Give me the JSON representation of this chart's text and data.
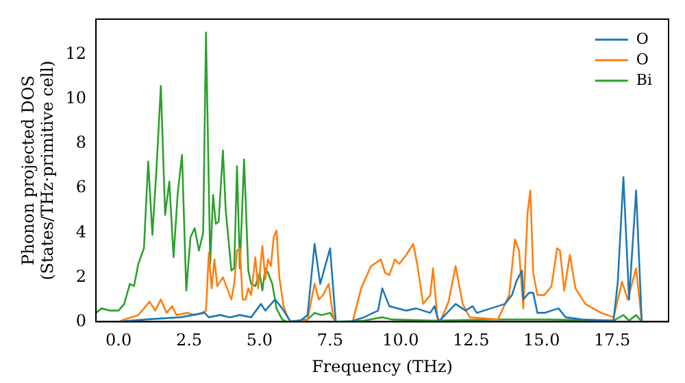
{
  "chart_data": {
    "type": "line",
    "xlabel": "Frequency (THz)",
    "ylabel": "Phonon projected DOS\n(States/THz·primitive cell)",
    "xlim": [
      -0.8,
      19.5
    ],
    "ylim": [
      0,
      13.6
    ],
    "xticks": [
      {
        "value": 0,
        "label": "0.0"
      },
      {
        "value": 2.5,
        "label": "2.5"
      },
      {
        "value": 5,
        "label": "5.0"
      },
      {
        "value": 7.5,
        "label": "7.5"
      },
      {
        "value": 10,
        "label": "10.0"
      },
      {
        "value": 12.5,
        "label": "12.5"
      },
      {
        "value": 15,
        "label": "15.0"
      },
      {
        "value": 17.5,
        "label": "17.5"
      }
    ],
    "yticks": [
      0,
      2,
      4,
      6,
      8,
      10,
      12
    ],
    "grid": false,
    "legend": "top right",
    "marker": "none",
    "line_style": "solid",
    "series": [
      {
        "name": "O",
        "color": "#1f77b4",
        "x": [
          0,
          0.95,
          2.2,
          3.05,
          3.2,
          3.6,
          3.95,
          4.3,
          4.7,
          5.05,
          5.2,
          5.55,
          5.8,
          6.1,
          6.45,
          6.7,
          6.95,
          7.15,
          7.5,
          7.7,
          8.2,
          8.7,
          9.2,
          9.35,
          9.6,
          10.2,
          10.55,
          11.05,
          11.2,
          11.35,
          11.95,
          12.3,
          12.55,
          12.7,
          13.2,
          13.7,
          13.95,
          14.1,
          14.3,
          14.35,
          14.55,
          14.7,
          14.85,
          15.1,
          15.6,
          15.85,
          16.45,
          17.55,
          17.7,
          17.9,
          18.1,
          18.35,
          18.55
        ],
        "values": [
          0,
          0.1,
          0.2,
          0.4,
          0.2,
          0.3,
          0.2,
          0.3,
          0.2,
          0.8,
          0.5,
          1.0,
          0.6,
          0,
          0.05,
          0.3,
          3.5,
          1.7,
          3.3,
          0,
          0,
          0.2,
          0.5,
          1.5,
          0.7,
          0.5,
          0.6,
          0.4,
          0.7,
          0,
          0.8,
          0.5,
          0.7,
          0.4,
          0.6,
          0.8,
          1.2,
          1.8,
          2.3,
          1.0,
          1.3,
          1.3,
          0.4,
          0.4,
          0.6,
          0.2,
          0.1,
          0.05,
          1.8,
          6.5,
          1.0,
          5.9,
          0
        ]
      },
      {
        "name": "O",
        "color": "#ff7f0e",
        "x": [
          0,
          0.2,
          0.7,
          1.1,
          1.3,
          1.5,
          1.7,
          1.9,
          2.05,
          2.45,
          2.7,
          2.95,
          3.1,
          3.2,
          3.3,
          3.4,
          3.5,
          3.7,
          3.85,
          4.0,
          4.1,
          4.2,
          4.3,
          4.4,
          4.5,
          4.6,
          4.7,
          4.85,
          4.95,
          5.1,
          5.2,
          5.3,
          5.4,
          5.5,
          5.6,
          5.7,
          5.85,
          6.0,
          6.1,
          6.45,
          6.7,
          6.95,
          7.1,
          7.25,
          7.45,
          7.6,
          7.7,
          8.3,
          8.6,
          8.95,
          9.3,
          9.45,
          9.6,
          9.8,
          9.95,
          10.2,
          10.45,
          10.6,
          10.8,
          11.05,
          11.15,
          11.3,
          11.4,
          11.7,
          11.95,
          12.2,
          12.45,
          13.45,
          13.85,
          14.05,
          14.2,
          14.35,
          14.5,
          14.6,
          14.7,
          14.85,
          15.1,
          15.35,
          15.55,
          15.65,
          15.8,
          16.0,
          16.2,
          16.55,
          17.1,
          17.55,
          17.85,
          18.05,
          18.35,
          18.55
        ],
        "values": [
          0,
          0.1,
          0.3,
          0.9,
          0.5,
          1.0,
          0.4,
          0.7,
          0.3,
          0.4,
          0.3,
          0.4,
          0.5,
          3.1,
          1.5,
          2.8,
          1.6,
          2.0,
          1.5,
          1.0,
          1.7,
          3.2,
          3.3,
          1.0,
          1.0,
          1.5,
          1.2,
          2.9,
          1.5,
          3.4,
          1.9,
          2.8,
          2.5,
          3.8,
          4.1,
          2.0,
          0.7,
          0.2,
          0,
          0,
          0.1,
          1.7,
          1.0,
          1.2,
          1.7,
          0.3,
          0,
          0,
          1.5,
          2.5,
          2.8,
          2.2,
          2.1,
          2.8,
          2.6,
          3.0,
          3.5,
          2.5,
          0.8,
          1.2,
          2.4,
          0.2,
          0,
          0.9,
          2.5,
          0.8,
          0.2,
          0.1,
          1.2,
          3.7,
          3.2,
          0.6,
          4.9,
          5.9,
          2.2,
          1.2,
          1.2,
          1.6,
          3.3,
          3.2,
          1.4,
          3.0,
          1.5,
          0.8,
          0.4,
          0.2,
          1.8,
          1.0,
          2.4,
          0
        ]
      },
      {
        "name": "Bi",
        "color": "#2ca02c",
        "x": [
          -0.8,
          -0.6,
          -0.3,
          0,
          0.2,
          0.4,
          0.55,
          0.7,
          0.9,
          1.05,
          1.2,
          1.35,
          1.5,
          1.65,
          1.8,
          1.95,
          2.1,
          2.25,
          2.4,
          2.55,
          2.7,
          2.85,
          3.0,
          3.1,
          3.25,
          3.35,
          3.45,
          3.55,
          3.7,
          3.8,
          4.0,
          4.1,
          4.2,
          4.3,
          4.45,
          4.6,
          4.7,
          4.85,
          5.0,
          5.1,
          5.2,
          5.3,
          5.45,
          5.6,
          5.8,
          6.0,
          6.7,
          6.95,
          7.2,
          7.5,
          7.7,
          8.7,
          9.35,
          9.7,
          11.2,
          13.45,
          15.2,
          17.55,
          17.9,
          18.1,
          18.35,
          18.55
        ],
        "values": [
          0.4,
          0.6,
          0.5,
          0.5,
          0.8,
          1.7,
          1.6,
          2.6,
          3.3,
          7.2,
          3.9,
          7.0,
          10.6,
          4.8,
          6.3,
          2.9,
          5.8,
          7.5,
          1.4,
          3.8,
          4.2,
          3.2,
          4.0,
          13.0,
          2.6,
          5.7,
          4.4,
          4.5,
          7.7,
          5.0,
          2.3,
          2.4,
          7.0,
          2.4,
          7.3,
          2.3,
          1.7,
          1.6,
          2.2,
          1.4,
          2.4,
          2.2,
          1.7,
          0.6,
          0.1,
          0,
          0.1,
          0.4,
          0.3,
          0.4,
          0,
          0.05,
          0.2,
          0.1,
          0.05,
          0.1,
          0.1,
          0.05,
          0.3,
          0.05,
          0.3,
          0
        ]
      }
    ]
  }
}
